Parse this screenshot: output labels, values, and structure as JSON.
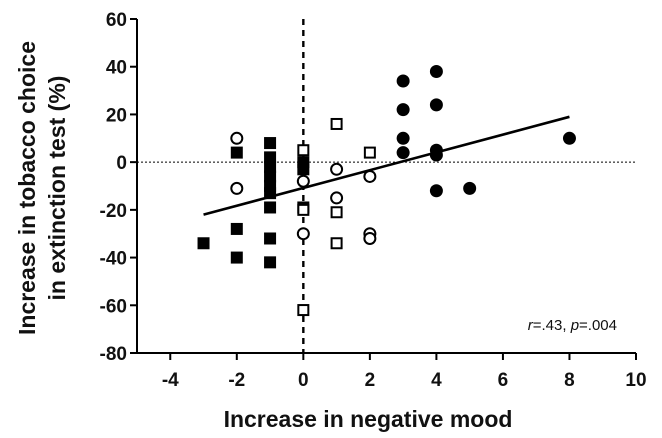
{
  "chart_data": {
    "type": "scatter",
    "xlabel": "Increase in negative mood",
    "ylabel_lines": [
      "Increase in tobacco choice",
      "in extinction test (%)"
    ],
    "xlim": [
      -5,
      10
    ],
    "ylim": [
      -80,
      60
    ],
    "x_ticks": [
      -4,
      -2,
      0,
      2,
      4,
      6,
      8,
      10
    ],
    "y_ticks": [
      -80,
      -60,
      -40,
      -20,
      0,
      20,
      40,
      60
    ],
    "x_tick_labels": [
      "-4",
      "-2",
      "0",
      "2",
      "4",
      "6",
      "8",
      "10"
    ],
    "y_tick_labels": [
      "-80",
      "-60",
      "-40",
      "-20",
      "0",
      "20",
      "40",
      "60"
    ],
    "reference_lines": [
      {
        "axis": "x",
        "value": 0,
        "style": "dashed-thick"
      },
      {
        "axis": "y",
        "value": 0,
        "style": "dotted-thin"
      }
    ],
    "grid": false,
    "series": [
      {
        "marker": "filled-square",
        "color": "#000000",
        "points": [
          [
            -3,
            -34
          ],
          [
            -2,
            4
          ],
          [
            -2,
            -28
          ],
          [
            -2,
            -40
          ],
          [
            -1,
            8
          ],
          [
            -1,
            2
          ],
          [
            -1,
            -2
          ],
          [
            -1,
            -6
          ],
          [
            -1,
            -10
          ],
          [
            -1,
            -13
          ],
          [
            -1,
            -19
          ],
          [
            -1,
            -32
          ],
          [
            -1,
            -42
          ],
          [
            0,
            0
          ],
          [
            0,
            -3
          ],
          [
            0,
            -19
          ]
        ]
      },
      {
        "marker": "open-circle",
        "color": "#000000",
        "points": [
          [
            -2,
            10
          ],
          [
            -2,
            -11
          ],
          [
            0,
            -8
          ],
          [
            0,
            -30
          ],
          [
            1,
            -3
          ],
          [
            1,
            -15
          ],
          [
            2,
            -6
          ],
          [
            2,
            -30
          ],
          [
            2,
            -32
          ]
        ]
      },
      {
        "marker": "open-square",
        "color": "#000000",
        "points": [
          [
            0,
            5
          ],
          [
            0,
            -20
          ],
          [
            0,
            -62
          ],
          [
            1,
            16
          ],
          [
            1,
            -21
          ],
          [
            1,
            -34
          ],
          [
            2,
            4
          ]
        ]
      },
      {
        "marker": "filled-circle",
        "color": "#000000",
        "points": [
          [
            3,
            34
          ],
          [
            3,
            22
          ],
          [
            3,
            10
          ],
          [
            3,
            4
          ],
          [
            4,
            38
          ],
          [
            4,
            24
          ],
          [
            4,
            5
          ],
          [
            4,
            3
          ],
          [
            4,
            -12
          ],
          [
            5,
            -11
          ],
          [
            8,
            10
          ]
        ]
      }
    ],
    "regression_line": {
      "x": [
        -3,
        8
      ],
      "y": [
        -22,
        19
      ]
    },
    "annotation": {
      "r_symbol": "r",
      "r_value": "=.43, ",
      "p_symbol": "p",
      "p_value": "=.004"
    }
  }
}
